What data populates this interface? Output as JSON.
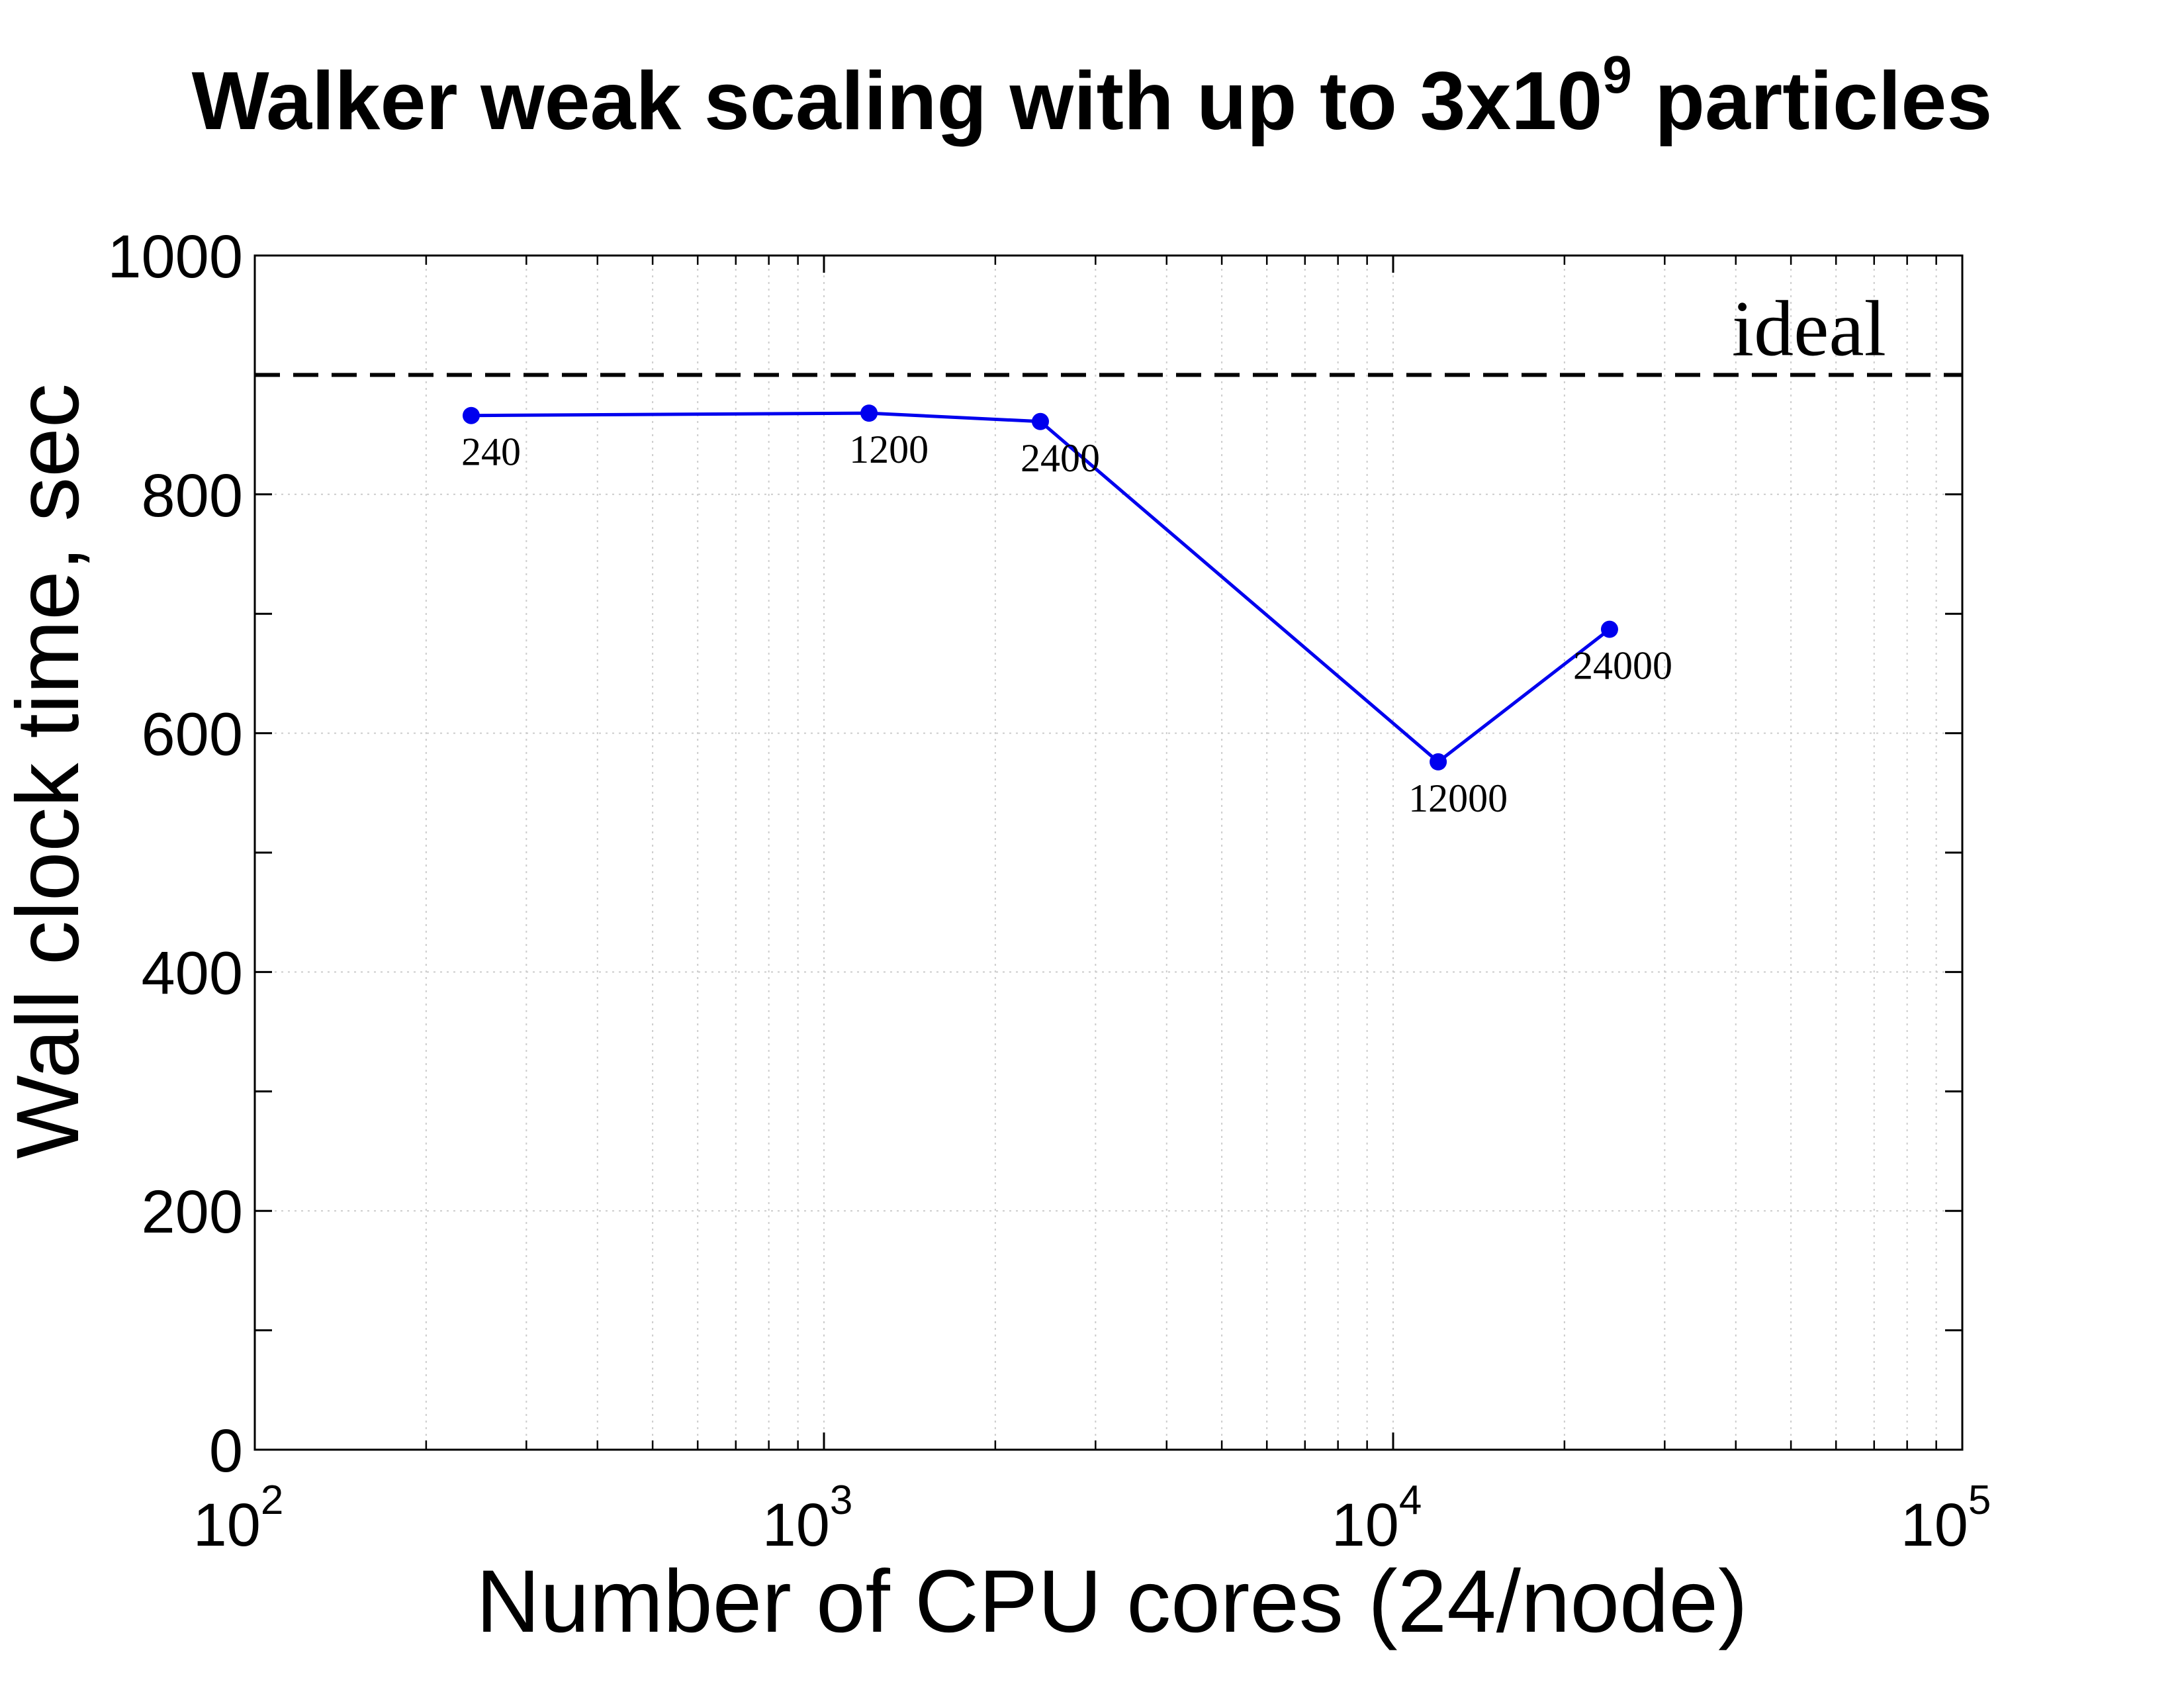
{
  "chart_data": {
    "type": "line",
    "title": "Walker weak scaling with up to 3x10",
    "title_superscript": "9",
    "title_suffix": " particles",
    "xlabel": "Number of CPU cores (24/node)",
    "ylabel": "Wall clock time, sec",
    "xscale": "log",
    "xlim": [
      100,
      100000
    ],
    "ylim": [
      0,
      1000
    ],
    "x_tick_labels": [
      {
        "base": "10",
        "exp": "2",
        "value": 100
      },
      {
        "base": "10",
        "exp": "3",
        "value": 1000
      },
      {
        "base": "10",
        "exp": "4",
        "value": 10000
      },
      {
        "base": "10",
        "exp": "5",
        "value": 100000
      }
    ],
    "y_ticks": [
      0,
      200,
      400,
      600,
      800,
      1000
    ],
    "y_tick_labels": [
      "0",
      "200",
      "400",
      "600",
      "800",
      "1000"
    ],
    "y_minor_ticks": [
      100,
      300,
      500,
      700,
      900
    ],
    "grid": true,
    "series": [
      {
        "color": "#0000ee",
        "marker": "circle",
        "x": [
          240,
          1200,
          2400,
          12000,
          24000
        ],
        "y": [
          866,
          868,
          861,
          576,
          687
        ],
        "point_labels": [
          "240",
          "1200",
          "2400",
          "12000",
          "24000"
        ]
      }
    ],
    "reference_line": {
      "label": "ideal",
      "y": 900,
      "style": "dashed",
      "color": "#000000"
    }
  }
}
